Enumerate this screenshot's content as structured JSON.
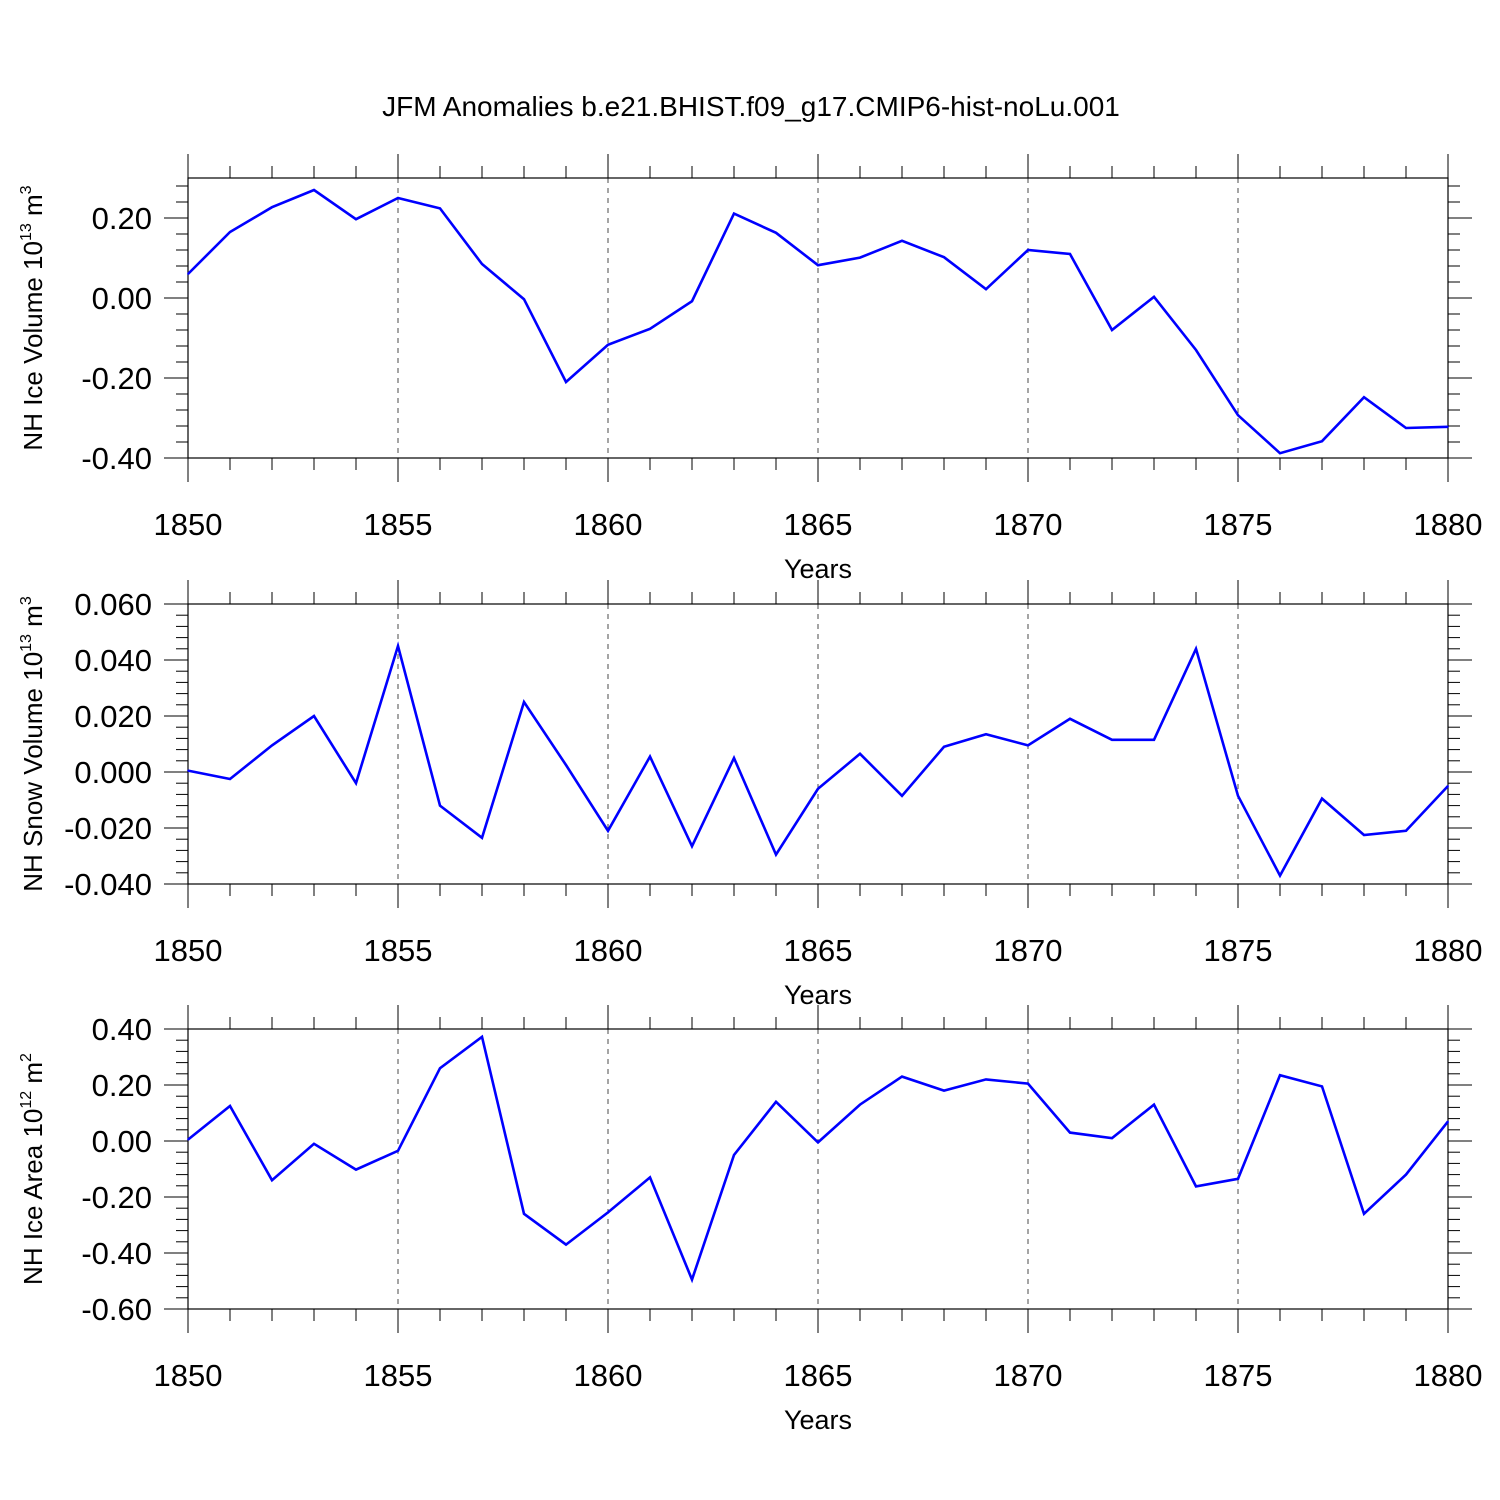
{
  "figure": {
    "title": "JFM Anomalies b.e21.BHIST.f09_g17.CMIP6-hist-noLu.001",
    "line_color": "#0000ff"
  },
  "chart_data": [
    {
      "type": "line",
      "ylabel": {
        "prefix": "NH Ice Volume 10",
        "exp": "13",
        "unit": " m",
        "unit_exp": "3"
      },
      "xlabel": "Years",
      "xlim": [
        1850,
        1880
      ],
      "ylim": [
        -0.4,
        0.3
      ],
      "xticks": [
        1850,
        1855,
        1860,
        1865,
        1870,
        1875,
        1880
      ],
      "yticks": [
        0.2,
        0.0,
        -0.2,
        -0.4
      ],
      "ytick_labels": [
        "0.20",
        "0.00",
        "-0.20",
        "-0.40"
      ],
      "grid": "dashed vertical at major x ticks",
      "series": [
        {
          "x": [
            1850,
            1851,
            1852,
            1853,
            1854,
            1855,
            1856,
            1857,
            1858,
            1859,
            1860,
            1861,
            1862,
            1863,
            1864,
            1865,
            1866,
            1867,
            1868,
            1869,
            1870,
            1871,
            1872,
            1873,
            1874,
            1875,
            1876,
            1877,
            1878,
            1879,
            1880
          ],
          "values": [
            0.06,
            0.165,
            0.227,
            0.27,
            0.197,
            0.25,
            0.224,
            0.085,
            -0.003,
            -0.21,
            -0.117,
            -0.077,
            -0.008,
            0.211,
            0.163,
            0.082,
            0.101,
            0.143,
            0.102,
            0.022,
            0.12,
            0.11,
            -0.08,
            0.003,
            -0.13,
            -0.293,
            -0.388,
            -0.358,
            -0.248,
            -0.325,
            -0.322
          ]
        }
      ]
    },
    {
      "type": "line",
      "ylabel": {
        "prefix": "NH Snow Volume 10",
        "exp": "13",
        "unit": " m",
        "unit_exp": "3"
      },
      "xlabel": "Years",
      "xlim": [
        1850,
        1880
      ],
      "ylim": [
        -0.04,
        0.06
      ],
      "xticks": [
        1850,
        1855,
        1860,
        1865,
        1870,
        1875,
        1880
      ],
      "yticks": [
        0.06,
        0.04,
        0.02,
        0.0,
        -0.02,
        -0.04
      ],
      "ytick_labels": [
        "0.060",
        "0.040",
        "0.020",
        "0.000",
        "-0.020",
        "-0.040"
      ],
      "grid": "dashed vertical at major x ticks",
      "series": [
        {
          "x": [
            1850,
            1851,
            1852,
            1853,
            1854,
            1855,
            1856,
            1857,
            1858,
            1859,
            1860,
            1861,
            1862,
            1863,
            1864,
            1865,
            1866,
            1867,
            1868,
            1869,
            1870,
            1871,
            1872,
            1873,
            1874,
            1875,
            1876,
            1877,
            1878,
            1879,
            1880
          ],
          "values": [
            0.0005,
            -0.0025,
            0.0095,
            0.02,
            -0.004,
            0.045,
            -0.012,
            -0.0235,
            0.025,
            0.0025,
            -0.021,
            0.0055,
            -0.0265,
            0.005,
            -0.0295,
            -0.006,
            0.0065,
            -0.0085,
            0.009,
            0.0135,
            0.0095,
            0.019,
            0.0115,
            0.0115,
            0.044,
            -0.0085,
            -0.037,
            -0.0095,
            -0.0225,
            -0.021,
            -0.005
          ]
        }
      ]
    },
    {
      "type": "line",
      "ylabel": {
        "prefix": "NH Ice Area 10",
        "exp": "12",
        "unit": " m",
        "unit_exp": "2"
      },
      "xlabel": "Years",
      "xlim": [
        1850,
        1880
      ],
      "ylim": [
        -0.6,
        0.4
      ],
      "xticks": [
        1850,
        1855,
        1860,
        1865,
        1870,
        1875,
        1880
      ],
      "yticks": [
        0.4,
        0.2,
        0.0,
        -0.2,
        -0.4,
        -0.6
      ],
      "ytick_labels": [
        "0.40",
        "0.20",
        "0.00",
        "-0.20",
        "-0.40",
        "-0.60"
      ],
      "grid": "dashed vertical at major x ticks",
      "series": [
        {
          "x": [
            1850,
            1851,
            1852,
            1853,
            1854,
            1855,
            1856,
            1857,
            1858,
            1859,
            1860,
            1861,
            1862,
            1863,
            1864,
            1865,
            1866,
            1867,
            1868,
            1869,
            1870,
            1871,
            1872,
            1873,
            1874,
            1875,
            1876,
            1877,
            1878,
            1879,
            1880
          ],
          "values": [
            0.005,
            0.125,
            -0.14,
            -0.01,
            -0.102,
            -0.035,
            0.26,
            0.372,
            -0.26,
            -0.37,
            -0.255,
            -0.13,
            -0.495,
            -0.05,
            0.14,
            -0.005,
            0.13,
            0.23,
            0.18,
            0.22,
            0.205,
            0.03,
            0.01,
            0.13,
            -0.162,
            -0.135,
            0.235,
            0.195,
            -0.26,
            -0.12,
            0.07
          ]
        }
      ]
    }
  ]
}
